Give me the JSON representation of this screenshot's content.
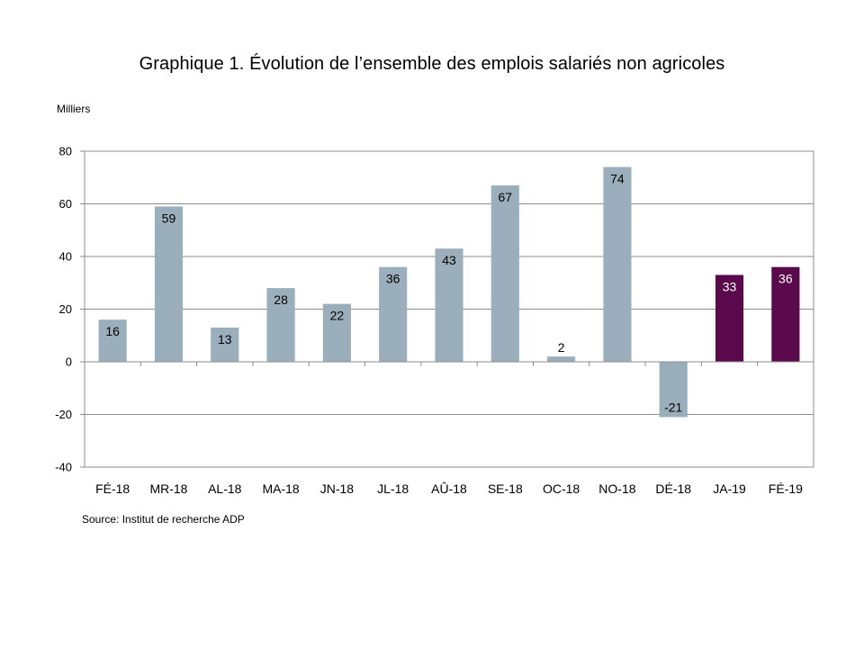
{
  "title": "Graphique 1. Évolution de l’ensemble des emplois salariés non agricoles",
  "y_unit": "Milliers",
  "source": "Source: Institut de recherche ADP",
  "chart_data": {
    "type": "bar",
    "categories": [
      "FÉ-18",
      "MR-18",
      "AL-18",
      "MA-18",
      "JN-18",
      "JL-18",
      "AÛ-18",
      "SE-18",
      "OC-18",
      "NO-18",
      "DÉ-18",
      "JA-19",
      "FÉ-19"
    ],
    "values": [
      16,
      59,
      13,
      28,
      22,
      36,
      43,
      67,
      2,
      74,
      -21,
      33,
      36
    ],
    "data_labels": [
      "16",
      "59",
      "13",
      "28",
      "22",
      "36",
      "43",
      "67",
      "2",
      "74",
      "-21",
      "33",
      "36"
    ],
    "bar_colors": [
      "#9aaebb",
      "#9aaebb",
      "#9aaebb",
      "#9aaebb",
      "#9aaebb",
      "#9aaebb",
      "#9aaebb",
      "#9aaebb",
      "#9aaebb",
      "#9aaebb",
      "#9aaebb",
      "#5a0a4c",
      "#5a0a4c"
    ],
    "label_colors": [
      "#000000",
      "#000000",
      "#000000",
      "#000000",
      "#000000",
      "#000000",
      "#000000",
      "#000000",
      "#000000",
      "#000000",
      "#000000",
      "#ffffff",
      "#ffffff"
    ],
    "ylim": [
      -40,
      80
    ],
    "yticks": [
      -40,
      -20,
      0,
      20,
      40,
      60,
      80
    ],
    "ytick_labels": [
      "-40",
      "-20",
      "0",
      "20",
      "40",
      "60",
      "80"
    ],
    "grid": true,
    "legend": "none"
  }
}
